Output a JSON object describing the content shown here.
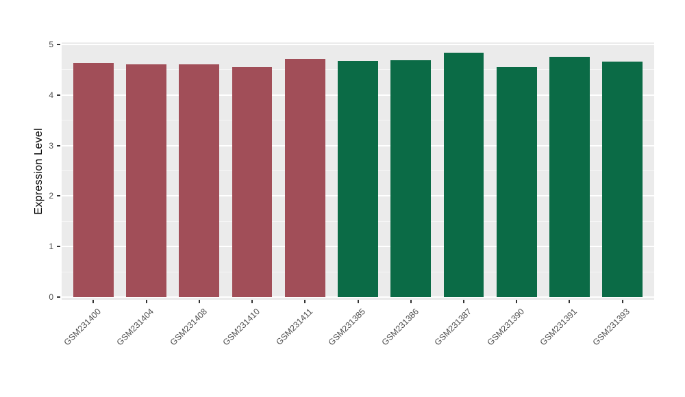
{
  "chart_data": {
    "type": "bar",
    "title": "",
    "xlabel": "",
    "ylabel": "Expression Level",
    "categories": [
      "GSM231400",
      "GSM231404",
      "GSM231408",
      "GSM231410",
      "GSM231411",
      "GSM231385",
      "GSM231386",
      "GSM231387",
      "GSM231390",
      "GSM231391",
      "GSM231393"
    ],
    "values": [
      4.63,
      4.61,
      4.61,
      4.55,
      4.72,
      4.68,
      4.69,
      4.84,
      4.55,
      4.75,
      4.66
    ],
    "bar_colors": [
      "#A14E58",
      "#A14E58",
      "#A14E58",
      "#A14E58",
      "#A14E58",
      "#0B6B46",
      "#0B6B46",
      "#0B6B46",
      "#0B6B46",
      "#0B6B46",
      "#0B6B46"
    ],
    "ylim": [
      0,
      5
    ],
    "yticks": [
      "0",
      "1",
      "2",
      "3",
      "4",
      "5"
    ],
    "x_tick_angle": 45,
    "grid": true,
    "legend_position": "none",
    "colors": {
      "panel_background": "#EBEBEB",
      "grid": "#FFFFFF",
      "axis_text": "#4D4D4D",
      "axis_title": "#000000",
      "figure_background": "#FFFFFF",
      "left_group_bar": "#A14E58",
      "right_group_bar": "#0B6B46"
    }
  }
}
